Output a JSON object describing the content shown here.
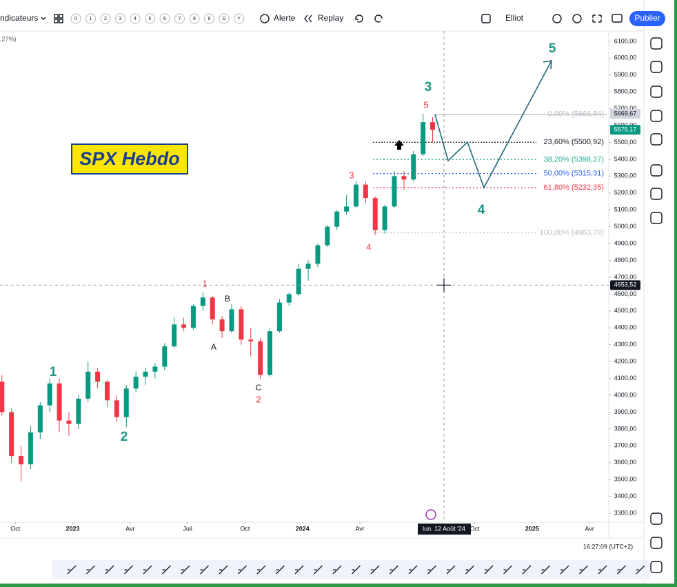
{
  "toolbar": {
    "indicators": "ndicateurs",
    "presets": [
      "0",
      "1",
      "2",
      "3",
      "4",
      "5",
      "6",
      "7",
      "8",
      "9",
      "D",
      "Y"
    ],
    "alert": "Alerte",
    "replay": "Replay",
    "layout": "Elliot",
    "publish": "Publier"
  },
  "chart_data": {
    "type": "candlestick",
    "title": "SPX Hebdo",
    "legend": ",27%)",
    "up_color": "#089981",
    "down_color": "#f23645",
    "x": [
      -0.7,
      -0.2,
      0.3,
      0.8,
      1.3,
      1.8,
      2.3,
      2.8,
      3.3,
      3.8,
      4.3,
      4.8,
      5.3,
      5.8,
      6.3,
      6.8,
      7.3,
      7.8,
      8.3,
      8.8,
      9.3,
      9.8,
      10.3,
      10.8,
      11.3,
      11.8,
      12.3,
      12.8,
      13.3,
      13.8,
      14.3,
      14.8,
      15.3,
      15.8,
      16.3,
      16.8,
      17.3,
      17.8,
      18.3,
      18.8,
      19.3,
      19.8,
      20.3,
      20.8,
      21.3,
      21.8
    ],
    "open": [
      4080,
      3900,
      3640,
      3590,
      3780,
      3940,
      4070,
      3850,
      3830,
      3980,
      4140,
      4080,
      3970,
      3870,
      4040,
      4110,
      4140,
      4170,
      4290,
      4420,
      4400,
      4530,
      4580,
      4450,
      4380,
      4510,
      4330,
      4320,
      4120,
      4380,
      4550,
      4600,
      4750,
      4780,
      4890,
      5000,
      5090,
      5120,
      5250,
      5170,
      4980,
      5120,
      5300,
      5280,
      5430,
      5620
    ],
    "high": [
      4120,
      3920,
      3700,
      3820,
      3960,
      4100,
      4100,
      3900,
      4000,
      4200,
      4160,
      4090,
      4000,
      4060,
      4140,
      4160,
      4190,
      4310,
      4460,
      4460,
      4540,
      4610,
      4590,
      4470,
      4540,
      4530,
      4400,
      4340,
      4400,
      4570,
      4610,
      4780,
      4800,
      4900,
      5010,
      5100,
      5190,
      5270,
      5270,
      5180,
      5130,
      5330,
      5330,
      5450,
      5670,
      5650
    ],
    "low": [
      3880,
      3600,
      3490,
      3560,
      3740,
      3900,
      3780,
      3760,
      3800,
      3960,
      4040,
      3930,
      3840,
      3810,
      4020,
      4060,
      4100,
      4150,
      4280,
      4380,
      4390,
      4500,
      4420,
      4340,
      4370,
      4300,
      4230,
      4100,
      4110,
      4370,
      4530,
      4590,
      4680,
      4760,
      4880,
      4980,
      5070,
      5110,
      5140,
      4950,
      4960,
      5110,
      5220,
      5270,
      5420,
      5500
    ],
    "close": [
      3900,
      3640,
      3590,
      3780,
      3940,
      4070,
      3850,
      3830,
      3980,
      4140,
      4080,
      3970,
      3870,
      4040,
      4110,
      4140,
      4170,
      4290,
      4420,
      4400,
      4530,
      4580,
      4450,
      4380,
      4510,
      4330,
      4320,
      4120,
      4380,
      4550,
      4600,
      4750,
      4780,
      4890,
      5000,
      5090,
      5120,
      5250,
      5170,
      4980,
      5120,
      5300,
      5280,
      5430,
      5620,
      5575.17
    ],
    "xlim": [
      -0.8,
      31.0
    ],
    "xticks": [
      {
        "value": 0,
        "label": "Oct"
      },
      {
        "value": 3,
        "label": "2023"
      },
      {
        "value": 6,
        "label": "Avr"
      },
      {
        "value": 9,
        "label": "Juil"
      },
      {
        "value": 12,
        "label": "Oct"
      },
      {
        "value": 15,
        "label": "2024"
      },
      {
        "value": 18,
        "label": "Avr"
      },
      {
        "value": 24,
        "label": "Oct"
      },
      {
        "value": 27,
        "label": "2025"
      },
      {
        "value": 30,
        "label": "Avr"
      }
    ],
    "ylim": [
      3247,
      6161
    ],
    "yticks": [
      {
        "value": 6100,
        "label": "6100,00"
      },
      {
        "value": 6000,
        "label": "6000,00"
      },
      {
        "value": 5900,
        "label": "5900,00"
      },
      {
        "value": 5800,
        "label": "5800,00"
      },
      {
        "value": 5700,
        "label": "5700,00"
      },
      {
        "value": 5600,
        "label": "5600,00"
      },
      {
        "value": 5500,
        "label": "5500,00"
      },
      {
        "value": 5400,
        "label": "5400,00"
      },
      {
        "value": 5300,
        "label": "5300,00"
      },
      {
        "value": 5200,
        "label": "5200,00"
      },
      {
        "value": 5100,
        "label": "5100,00"
      },
      {
        "value": 5000,
        "label": "5000,00"
      },
      {
        "value": 4900,
        "label": "4900,00"
      },
      {
        "value": 4800,
        "label": "4800,00"
      },
      {
        "value": 4700,
        "label": "4700,00"
      },
      {
        "value": 4600,
        "label": "4600,00"
      },
      {
        "value": 4500,
        "label": "4500,00"
      },
      {
        "value": 4400,
        "label": "4400,00"
      },
      {
        "value": 4300,
        "label": "4300,00"
      },
      {
        "value": 4200,
        "label": "4200,00"
      },
      {
        "value": 4100,
        "label": "4100,00"
      },
      {
        "value": 4000,
        "label": "4000,00"
      },
      {
        "value": 3900,
        "label": "3900,00"
      },
      {
        "value": 3800,
        "label": "3800,00"
      },
      {
        "value": 3700,
        "label": "3700,00"
      },
      {
        "value": 3600,
        "label": "3600,00"
      },
      {
        "value": 3500,
        "label": "3500,00"
      },
      {
        "value": 3400,
        "label": "3400,00"
      },
      {
        "value": 3300,
        "label": "3300,00"
      }
    ],
    "fib_levels": [
      {
        "value": 5666.84,
        "label": "0,00% (5666,84)",
        "color": "#b8bcc4"
      },
      {
        "value": 5500.92,
        "label": "23,60% (5500,92)",
        "color": "#131722"
      },
      {
        "value": 5398.27,
        "label": "38,20% (5398,27)",
        "color": "#22ab94"
      },
      {
        "value": 5315.31,
        "label": "50,00% (5315,31)",
        "color": "#2962ff"
      },
      {
        "value": 5232.35,
        "label": "61,80% (5232,35)",
        "color": "#f23645"
      },
      {
        "value": 4963.78,
        "label": "100,00% (4963,78)",
        "color": "#b8bcc4"
      }
    ],
    "high_badge": {
      "value": 5669.67,
      "label": "5669,67"
    },
    "last_price": {
      "value": 5575.17,
      "label": "5575,17"
    },
    "crosshair_price": {
      "value": 4653.52,
      "label": "4653,52"
    },
    "crosshair_date": "lun. 12 Août '24",
    "major_waves": [
      "1",
      "2",
      "3",
      "4",
      "5"
    ],
    "minor_waves": [
      "1",
      "2",
      "3",
      "4",
      "5"
    ],
    "corrective_waves": [
      "A",
      "B",
      "C"
    ]
  },
  "status": {
    "time": "16:27:09 (UTC+2)"
  }
}
